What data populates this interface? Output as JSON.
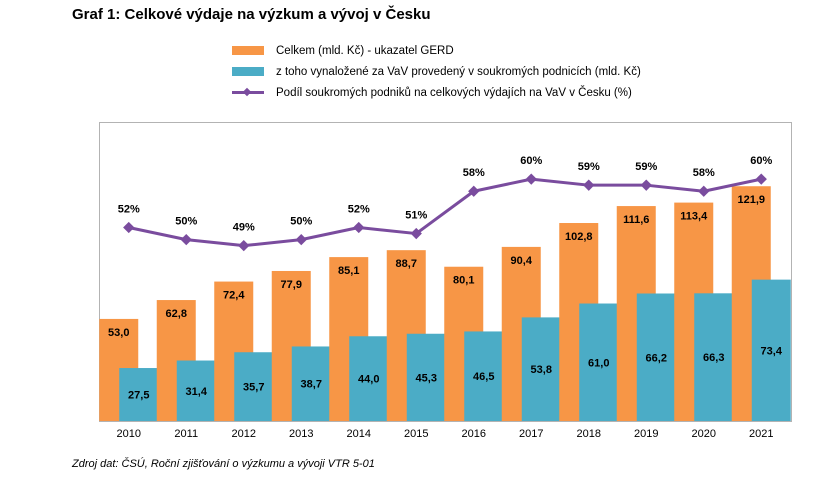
{
  "page": {
    "title": "Graf 1: Celkové výdaje na výzkum a vývoj v Česku",
    "source": "Zdroj dat: ČSÚ, Roční zjišťování o výzkumu a vývoji VTR 5-01"
  },
  "colors": {
    "orange": "#f79646",
    "teal": "#4bacc6",
    "purple": "#7a4c9e",
    "frame": "#b3b3b3"
  },
  "chart_data": {
    "type": "bar",
    "categories": [
      "2010",
      "2011",
      "2012",
      "2013",
      "2014",
      "2015",
      "2016",
      "2017",
      "2018",
      "2019",
      "2020",
      "2021"
    ],
    "series": [
      {
        "name": "Celkem (mld. Kč) - ukazatel GERD",
        "values": [
          53.0,
          62.8,
          72.4,
          77.9,
          85.1,
          88.7,
          80.1,
          90.4,
          102.8,
          111.6,
          113.4,
          121.9
        ],
        "labels": [
          "53,0",
          "62,8",
          "72,4",
          "77,9",
          "85,1",
          "88,7",
          "80,1",
          "90,4",
          "102,8",
          "111,6",
          "113,4",
          "121,9"
        ]
      },
      {
        "name": "z toho vynaložené za VaV provedený v soukromých podnicích (mld. Kč)",
        "values": [
          27.5,
          31.4,
          35.7,
          38.7,
          44.0,
          45.3,
          46.5,
          53.8,
          61.0,
          66.2,
          66.3,
          73.4
        ],
        "labels": [
          "27,5",
          "31,4",
          "35,7",
          "38,7",
          "44,0",
          "45,3",
          "46,5",
          "53,8",
          "61,0",
          "66,2",
          "66,3",
          "73,4"
        ]
      },
      {
        "name": "Podíl soukromých podniků na celkových výdajích na VaV v Česku (%)",
        "type": "line",
        "values": [
          52,
          50,
          49,
          50,
          52,
          51,
          58,
          60,
          59,
          59,
          58,
          60
        ],
        "labels": [
          "52%",
          "50%",
          "49%",
          "50%",
          "52%",
          "51%",
          "58%",
          "60%",
          "59%",
          "59%",
          "58%",
          "60%"
        ]
      }
    ],
    "bar_range": [
      0,
      135
    ],
    "line_range": [
      20,
      63
    ],
    "grid": false,
    "legend_position": "top"
  }
}
